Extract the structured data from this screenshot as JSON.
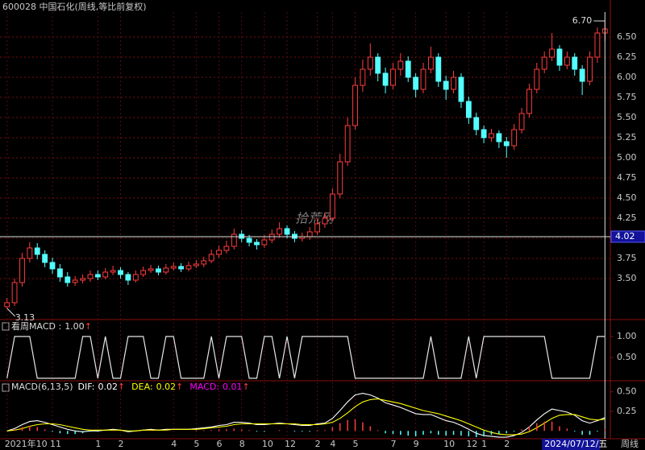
{
  "chart_data": [
    {
      "type": "candlestick",
      "title": "600028 中国石化(周线,等比前复权)",
      "watermark": "拾荒网",
      "categories": [
        "2021年10",
        null,
        null,
        null,
        null,
        null,
        "11",
        null,
        null,
        null,
        null,
        null,
        "1",
        null,
        null,
        "2",
        null,
        null,
        null,
        null,
        null,
        null,
        "4",
        null,
        null,
        "5",
        null,
        null,
        "6",
        null,
        null,
        "8",
        null,
        null,
        "10",
        null,
        null,
        "12",
        null,
        null,
        null,
        "2",
        null,
        "4",
        null,
        null,
        "5",
        null,
        null,
        null,
        null,
        "7",
        null,
        null,
        "9",
        null,
        null,
        null,
        "10",
        null,
        null,
        "12",
        null,
        "1",
        null,
        null,
        "2",
        null,
        null,
        null,
        null,
        null,
        null,
        null,
        null,
        null,
        null,
        null,
        null,
        null
      ],
      "open": [
        3.15,
        3.2,
        3.45,
        3.75,
        3.88,
        3.8,
        3.7,
        3.62,
        3.52,
        3.45,
        3.48,
        3.5,
        3.55,
        3.52,
        3.58,
        3.6,
        3.55,
        3.48,
        3.55,
        3.6,
        3.62,
        3.58,
        3.63,
        3.65,
        3.62,
        3.66,
        3.68,
        3.72,
        3.8,
        3.85,
        3.9,
        4.05,
        4.0,
        3.95,
        3.92,
        3.98,
        4.05,
        4.12,
        4.05,
        4.0,
        4.02,
        4.08,
        4.18,
        4.25,
        4.55,
        4.95,
        5.4,
        5.9,
        6.1,
        6.25,
        6.05,
        5.9,
        6.1,
        6.2,
        6.0,
        5.85,
        6.1,
        6.25,
        5.95,
        5.85,
        6.0,
        5.7,
        5.5,
        5.35,
        5.25,
        5.3,
        5.2,
        5.15,
        5.35,
        5.55,
        5.85,
        6.1,
        6.25,
        6.35,
        6.15,
        6.25,
        6.1,
        5.95,
        6.25,
        6.55
      ],
      "high": [
        3.26,
        3.5,
        3.82,
        3.95,
        3.94,
        3.85,
        3.76,
        3.68,
        3.58,
        3.53,
        3.55,
        3.6,
        3.6,
        3.63,
        3.66,
        3.64,
        3.58,
        3.6,
        3.65,
        3.67,
        3.66,
        3.68,
        3.7,
        3.69,
        3.71,
        3.73,
        3.77,
        3.86,
        3.91,
        3.97,
        4.12,
        4.1,
        4.04,
        3.99,
        4.04,
        4.11,
        4.2,
        4.16,
        4.09,
        4.07,
        4.14,
        4.24,
        4.32,
        4.62,
        5.05,
        5.5,
        6.0,
        6.22,
        6.42,
        6.3,
        6.12,
        6.18,
        6.3,
        6.26,
        6.05,
        6.18,
        6.38,
        6.3,
        6.02,
        6.08,
        6.05,
        5.76,
        5.56,
        5.4,
        5.36,
        5.34,
        5.26,
        5.42,
        5.62,
        5.92,
        6.18,
        6.32,
        6.55,
        6.4,
        6.32,
        6.3,
        6.15,
        6.32,
        6.62,
        6.7
      ],
      "low": [
        3.13,
        3.16,
        3.4,
        3.7,
        3.74,
        3.64,
        3.56,
        3.46,
        3.4,
        3.41,
        3.44,
        3.46,
        3.48,
        3.49,
        3.54,
        3.5,
        3.42,
        3.45,
        3.52,
        3.57,
        3.54,
        3.55,
        3.6,
        3.58,
        3.59,
        3.63,
        3.64,
        3.69,
        3.76,
        3.81,
        3.86,
        3.95,
        3.9,
        3.86,
        3.88,
        3.94,
        4.01,
        4.0,
        3.95,
        3.96,
        3.98,
        4.04,
        4.13,
        4.21,
        4.5,
        4.9,
        5.35,
        5.82,
        6.02,
        5.95,
        5.8,
        5.85,
        6.02,
        5.94,
        5.75,
        5.8,
        6.05,
        5.88,
        5.72,
        5.8,
        5.62,
        5.42,
        5.28,
        5.18,
        5.2,
        5.12,
        5.0,
        5.1,
        5.3,
        5.5,
        5.8,
        6.05,
        6.2,
        6.08,
        6.1,
        6.02,
        5.78,
        5.9,
        6.18,
        6.45
      ],
      "close": [
        3.2,
        3.45,
        3.75,
        3.88,
        3.8,
        3.7,
        3.62,
        3.52,
        3.45,
        3.48,
        3.5,
        3.55,
        3.52,
        3.58,
        3.6,
        3.55,
        3.48,
        3.55,
        3.6,
        3.62,
        3.58,
        3.63,
        3.65,
        3.62,
        3.66,
        3.68,
        3.72,
        3.8,
        3.85,
        3.9,
        4.05,
        4.0,
        3.95,
        3.92,
        3.98,
        4.05,
        4.12,
        4.05,
        4.0,
        4.02,
        4.08,
        4.18,
        4.25,
        4.55,
        4.95,
        5.4,
        5.9,
        6.1,
        6.25,
        6.05,
        5.9,
        6.1,
        6.2,
        6.0,
        5.85,
        6.1,
        6.25,
        5.95,
        5.85,
        6.0,
        5.7,
        5.5,
        5.35,
        5.25,
        5.3,
        5.2,
        5.15,
        5.35,
        5.55,
        5.85,
        6.1,
        6.25,
        6.35,
        6.15,
        6.25,
        6.1,
        5.95,
        6.25,
        6.55,
        6.6
      ],
      "up_color": "#ff3c3c",
      "down_color": "#54ffff",
      "ylim": [
        3.06,
        6.81
      ],
      "yticks": [
        {
          "value": 3.5,
          "label": "3.50"
        },
        {
          "value": 3.75,
          "label": "3.75"
        },
        {
          "value": 4,
          "label": "4.00"
        },
        {
          "value": 4.25,
          "label": "4.25"
        },
        {
          "value": 4.5,
          "label": "4.50"
        },
        {
          "value": 4.75,
          "label": "4.75"
        },
        {
          "value": 5,
          "label": "5.00"
        },
        {
          "value": 5.25,
          "label": "5.25"
        },
        {
          "value": 5.5,
          "label": "5.50"
        },
        {
          "value": 5.75,
          "label": "5.75"
        },
        {
          "value": 6,
          "label": "6.00"
        },
        {
          "value": 6.25,
          "label": "6.25"
        },
        {
          "value": 6.5,
          "label": "6.50"
        }
      ],
      "grid": true,
      "max_label": {
        "value": 6.7,
        "label": "6.70"
      },
      "min_label": {
        "value": 3.13,
        "label": "3.13"
      },
      "crosshair": {
        "value": 4.02,
        "label": "4.02"
      },
      "cursor_date": "2024/07/12/五",
      "period": "周线"
    },
    {
      "type": "line",
      "series": [
        {
          "name": "看周MACD :",
          "color": "#e6e6e6",
          "values": [
            0,
            1,
            1,
            1,
            0,
            0,
            0,
            0,
            0,
            0,
            1,
            1,
            0,
            1,
            0,
            0,
            1,
            1,
            1,
            0,
            0,
            1,
            1,
            0,
            0,
            0,
            0,
            1,
            0,
            1,
            1,
            1,
            0,
            0,
            1,
            1,
            0,
            1,
            0,
            1,
            1,
            1,
            1,
            1,
            1,
            1,
            0,
            0,
            0,
            0,
            0,
            0,
            0,
            0,
            0,
            0,
            1,
            0,
            0,
            0,
            0,
            1,
            0,
            1,
            1,
            1,
            1,
            1,
            1,
            1,
            1,
            1,
            0,
            0,
            0,
            0,
            0,
            0,
            1,
            1
          ],
          "readout": {
            "value": 1,
            "label": "1.00"
          }
        }
      ],
      "arrow": "↑",
      "ylim": [
        -0.04,
        1.25
      ],
      "yticks": [
        {
          "value": 0.5,
          "label": "0.50"
        },
        {
          "value": 1,
          "label": "1.00"
        }
      ]
    },
    {
      "type": "macd",
      "title": "MACD(6,13,5)",
      "arrow": "↑",
      "series": [
        {
          "name": "DIF:",
          "color": "#ffffff",
          "readout": 0.02,
          "values": [
            0.0,
            0.03,
            0.08,
            0.12,
            0.13,
            0.11,
            0.08,
            0.05,
            0.02,
            0.0,
            -0.01,
            0.0,
            0.0,
            0.01,
            0.02,
            0.01,
            -0.01,
            0.0,
            0.01,
            0.02,
            0.01,
            0.02,
            0.02,
            0.02,
            0.02,
            0.03,
            0.04,
            0.05,
            0.07,
            0.08,
            0.11,
            0.11,
            0.1,
            0.08,
            0.08,
            0.09,
            0.1,
            0.09,
            0.08,
            0.07,
            0.07,
            0.09,
            0.1,
            0.16,
            0.26,
            0.37,
            0.46,
            0.48,
            0.46,
            0.42,
            0.36,
            0.33,
            0.3,
            0.26,
            0.22,
            0.21,
            0.21,
            0.17,
            0.13,
            0.11,
            0.07,
            0.02,
            -0.03,
            -0.06,
            -0.07,
            -0.08,
            -0.08,
            -0.06,
            -0.02,
            0.05,
            0.14,
            0.22,
            0.28,
            0.26,
            0.24,
            0.2,
            0.13,
            0.1,
            0.13,
            0.17
          ]
        },
        {
          "name": "DEA:",
          "color": "#ffff00",
          "readout": 0.02,
          "values": [
            0.0,
            0.01,
            0.03,
            0.06,
            0.08,
            0.09,
            0.09,
            0.08,
            0.06,
            0.04,
            0.02,
            0.01,
            0.01,
            0.01,
            0.01,
            0.01,
            0.0,
            0.0,
            0.01,
            0.01,
            0.01,
            0.01,
            0.02,
            0.02,
            0.02,
            0.02,
            0.03,
            0.04,
            0.05,
            0.06,
            0.08,
            0.09,
            0.09,
            0.09,
            0.09,
            0.09,
            0.09,
            0.09,
            0.09,
            0.08,
            0.08,
            0.08,
            0.09,
            0.11,
            0.16,
            0.23,
            0.31,
            0.37,
            0.4,
            0.41,
            0.39,
            0.37,
            0.35,
            0.32,
            0.29,
            0.26,
            0.24,
            0.22,
            0.19,
            0.16,
            0.13,
            0.09,
            0.05,
            0.01,
            -0.02,
            -0.04,
            -0.05,
            -0.05,
            -0.04,
            -0.01,
            0.04,
            0.1,
            0.16,
            0.2,
            0.21,
            0.21,
            0.18,
            0.15,
            0.14,
            0.15
          ]
        },
        {
          "name": "MACD:",
          "color": "#ff00ff",
          "readout": 0.01,
          "values": [
            0.0,
            0.02,
            0.05,
            0.06,
            0.05,
            0.02,
            -0.01,
            -0.03,
            -0.04,
            -0.04,
            -0.03,
            -0.01,
            -0.01,
            0.0,
            0.01,
            0.0,
            -0.01,
            0.0,
            0.0,
            0.01,
            0.0,
            0.01,
            0.0,
            0.0,
            0.0,
            0.01,
            0.01,
            0.01,
            0.02,
            0.02,
            0.03,
            0.02,
            0.01,
            -0.01,
            -0.01,
            0.0,
            0.01,
            0.0,
            -0.01,
            -0.01,
            -0.01,
            0.01,
            0.01,
            0.05,
            0.1,
            0.14,
            0.15,
            0.11,
            0.06,
            0.01,
            -0.03,
            -0.04,
            -0.05,
            -0.06,
            -0.07,
            -0.05,
            -0.03,
            -0.05,
            -0.06,
            -0.05,
            -0.06,
            -0.07,
            -0.08,
            -0.07,
            -0.05,
            -0.04,
            -0.03,
            -0.01,
            0.02,
            0.06,
            0.1,
            0.12,
            0.12,
            0.06,
            0.03,
            -0.01,
            -0.05,
            -0.05,
            -0.01,
            0.02
          ]
        }
      ],
      "ylim": [
        -0.1,
        0.61
      ],
      "yticks": [
        {
          "value": 0.25,
          "label": "0.25"
        },
        {
          "value": 0.5,
          "label": "0.50"
        }
      ]
    }
  ]
}
